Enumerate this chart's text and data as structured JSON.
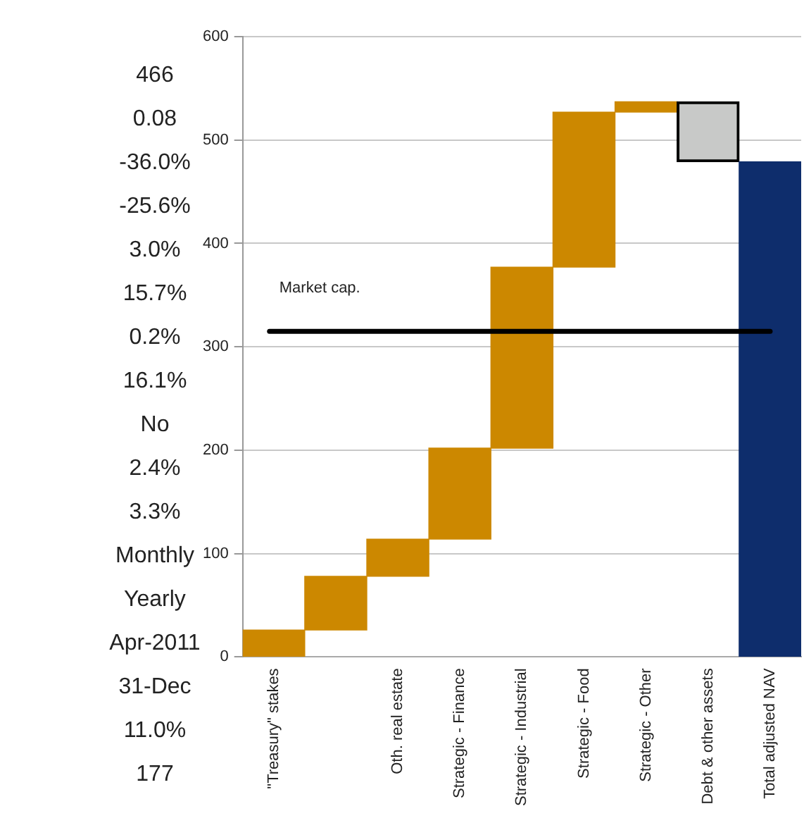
{
  "chart_data": {
    "type": "bar",
    "categories": [
      "\"Treasury\" stakes",
      null,
      "Oth. real estate",
      "Strategic - Finance",
      "Strategic - Industrial",
      "Strategic - Food",
      "Strategic - Other",
      "Debt & other assets",
      "Total adjusted NAV"
    ],
    "values": [
      26,
      52,
      36,
      88,
      175,
      150,
      10,
      -58,
      479
    ],
    "base": [
      0,
      26,
      78,
      114,
      202,
      377,
      527,
      537,
      0
    ],
    "colors": [
      "#cc8800",
      "#cc8800",
      "#cc8800",
      "#cc8800",
      "#cc8800",
      "#cc8800",
      "#cc8800",
      "#c8c9c8",
      "#0e2d6c"
    ],
    "ylim": [
      0,
      600
    ],
    "yticks": [
      0,
      100,
      200,
      300,
      400,
      500,
      600
    ],
    "grid": "y",
    "legend": false,
    "ref_lines": [
      {
        "axis": "y",
        "value": 315,
        "label": "Market cap.",
        "color": "#000000"
      }
    ],
    "annotations": [
      "466",
      "0.08",
      "-36.0%",
      "-25.6%",
      "3.0%",
      "15.7%",
      "0.2%",
      "16.1%",
      "No",
      "2.4%",
      "3.3%",
      "Monthly",
      "Yearly",
      "Apr-2011",
      "31-Dec",
      "11.0%",
      "177"
    ]
  }
}
